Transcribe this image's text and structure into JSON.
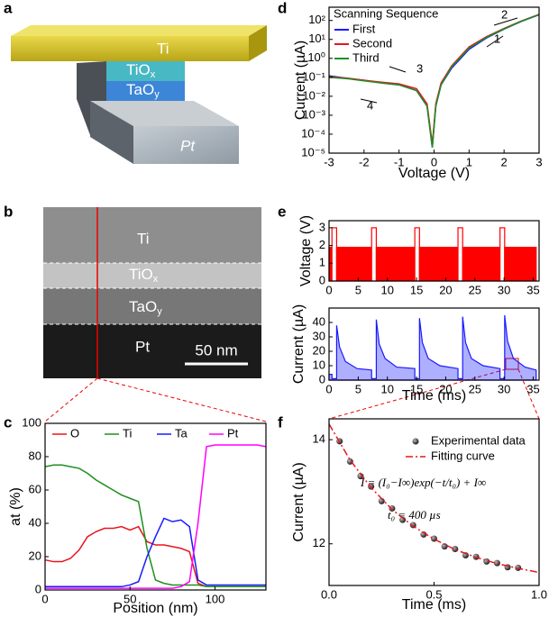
{
  "schematic": {
    "panel_label": "a",
    "layers": [
      {
        "base": "Ti"
      },
      {
        "base": "TiO",
        "sub": "x"
      },
      {
        "base": "TaO",
        "sub": "y"
      },
      {
        "base": "Pt"
      }
    ]
  },
  "micrograph": {
    "panel_label": "b",
    "layers": [
      {
        "base": "Ti"
      },
      {
        "base": "TiO",
        "sub": "x"
      },
      {
        "base": "TaO",
        "sub": "y"
      },
      {
        "base": "Pt"
      }
    ],
    "scale_bar": "50 nm"
  },
  "chart_data": [
    {
      "type": "line",
      "panel_label": "c",
      "xlabel": "Position (nm)",
      "ylabel": "at (%)",
      "legend": "upper center",
      "xlim": [
        0,
        130
      ],
      "xticks": [
        0,
        50,
        100
      ],
      "ylim": [
        0,
        100
      ],
      "yticks": [
        0,
        20,
        40,
        60,
        80,
        100
      ],
      "x": [
        0,
        5,
        10,
        15,
        20,
        25,
        30,
        35,
        40,
        45,
        50,
        55,
        60,
        65,
        70,
        75,
        80,
        85,
        90,
        95,
        100,
        105,
        110,
        115,
        120,
        125,
        130
      ],
      "series": [
        {
          "name": "O",
          "color": "#e8141c",
          "values": [
            18,
            17,
            17,
            19,
            24,
            32,
            35,
            37,
            37,
            38,
            36,
            38,
            29,
            27,
            27,
            26,
            25,
            23,
            4,
            2,
            2,
            2,
            2,
            2,
            2,
            2,
            2
          ]
        },
        {
          "name": "Ti",
          "color": "#1f8f1f",
          "values": [
            74,
            75,
            75,
            74,
            73,
            70,
            66,
            63,
            60,
            57,
            55,
            53,
            25,
            6,
            4,
            3,
            3,
            3,
            3,
            2,
            2,
            2,
            2,
            2,
            2,
            2,
            2
          ]
        },
        {
          "name": "Ta",
          "color": "#1a1aff",
          "values": [
            2,
            2,
            2,
            2,
            2,
            2,
            2,
            2,
            2,
            2,
            3,
            5,
            20,
            32,
            43,
            41,
            42,
            38,
            6,
            3,
            3,
            3,
            3,
            3,
            3,
            3,
            3
          ]
        },
        {
          "name": "Pt",
          "color": "#ff00ff",
          "values": [
            1,
            1,
            1,
            1,
            1,
            1,
            1,
            1,
            1,
            1,
            1,
            1,
            1,
            1,
            1,
            1,
            2,
            5,
            40,
            86,
            87,
            87,
            87,
            87,
            87,
            87,
            86
          ]
        }
      ]
    },
    {
      "type": "line",
      "panel_label": "d",
      "xlabel": "Voltage (V)",
      "ylabel": "Current (µA)",
      "log_y": true,
      "legend": "upper left",
      "legend_title": "Scanning Sequence",
      "annotations": [
        "1",
        "2",
        "3",
        "4"
      ],
      "xlim": [
        -3,
        3
      ],
      "xticks": [
        -3,
        -2,
        -1,
        0,
        1,
        2,
        3
      ],
      "ylim": [
        1e-05,
        500
      ],
      "yticks": [
        {
          "value": 1e-05,
          "label": "10⁻⁵"
        },
        {
          "value": 0.0001,
          "label": "10⁻⁴"
        },
        {
          "value": 0.001,
          "label": "10⁻³"
        },
        {
          "value": 0.01,
          "label": "10⁻²"
        },
        {
          "value": 0.1,
          "label": "10⁻¹"
        },
        {
          "value": 1,
          "label": "10⁰"
        },
        {
          "value": 10,
          "label": "10¹"
        },
        {
          "value": 100,
          "label": "10²"
        }
      ],
      "x": [
        -3,
        -2.5,
        -2,
        -1.5,
        -1,
        -0.5,
        -0.2,
        -0.05,
        0.05,
        0.2,
        0.5,
        1,
        1.5,
        2,
        2.5,
        3
      ],
      "series": [
        {
          "name": "First",
          "color": "#1a1aff",
          "values": [
            0.12,
            0.09,
            0.07,
            0.05,
            0.04,
            0.02,
            0.003,
            2e-05,
            0.003,
            0.04,
            0.3,
            3,
            12,
            35,
            90,
            200
          ]
        },
        {
          "name": "Second",
          "color": "#e8141c",
          "values": [
            0.11,
            0.09,
            0.07,
            0.055,
            0.045,
            0.025,
            0.004,
            3e-05,
            0.004,
            0.05,
            0.4,
            4,
            14,
            38,
            95,
            210
          ]
        },
        {
          "name": "Third",
          "color": "#1f8f1f",
          "values": [
            0.1,
            0.085,
            0.065,
            0.05,
            0.04,
            0.02,
            0.003,
            2e-05,
            0.003,
            0.04,
            0.35,
            3.5,
            13,
            36,
            92,
            205
          ]
        }
      ]
    },
    {
      "type": "histogram",
      "panel_label": "e",
      "ylabel": "Voltage (V)",
      "color": "#ff0000",
      "xlim": [
        0,
        36
      ],
      "xticks": [
        0,
        5,
        10,
        15,
        20,
        25,
        30,
        35
      ],
      "ylim": [
        0,
        3.4
      ],
      "yticks": [
        0,
        1,
        2,
        3
      ],
      "bins": [
        0,
        0.5,
        1.3,
        7.3,
        8.1,
        14.7,
        15.5,
        22.1,
        22.9,
        29.3,
        30.1,
        35.5
      ],
      "values": [
        1.9,
        3,
        1.9,
        3,
        1.9,
        3,
        1.9,
        3,
        1.9,
        3,
        1.9
      ]
    },
    {
      "type": "area",
      "xlabel": "Time (ms)",
      "ylabel": "Current (µA)",
      "xlim": [
        0,
        36
      ],
      "xticks": [
        0,
        5,
        10,
        15,
        20,
        25,
        30,
        35
      ],
      "ylim": [
        0,
        50
      ],
      "yticks": [
        0,
        10,
        20,
        30,
        40
      ],
      "x": [
        0,
        0.5,
        0.5,
        1.3,
        1.3,
        1.8,
        2.8,
        4.8,
        7.3,
        7.3,
        8.1,
        8.1,
        8.6,
        9.6,
        11.6,
        14.7,
        14.7,
        15.5,
        15.5,
        16,
        17,
        19,
        22.1,
        22.1,
        22.9,
        22.9,
        23.4,
        24.4,
        26.4,
        29.3,
        29.3,
        30.1,
        30.1,
        30.6,
        31.6,
        33.6,
        35.5
      ],
      "series": [
        {
          "color": "#1a1aff",
          "values": [
            4,
            4,
            1,
            1,
            38,
            23,
            13,
            8,
            7,
            1,
            1,
            42,
            25,
            15,
            9,
            8,
            1,
            1,
            43,
            26,
            15,
            10,
            8,
            1,
            1,
            44,
            26,
            15,
            10,
            8,
            1,
            1,
            45,
            27,
            15,
            9,
            7
          ]
        }
      ]
    },
    {
      "type": "scatter",
      "panel_label": "f",
      "xlabel": "Time (ms)",
      "ylabel": "Current (µA)",
      "legend": "upper right",
      "annotations": [
        "I = (I₀−I∞)exp(−t/t₀) + I∞",
        "t₀ = 400 µs"
      ],
      "xlim": [
        0,
        1
      ],
      "xticks": [
        {
          "value": 0,
          "label": "0.0"
        },
        0.5,
        {
          "value": 1,
          "label": "1.0"
        }
      ],
      "ylim": [
        11.2,
        14.4
      ],
      "yticks": [
        12,
        14
      ],
      "series": [
        {
          "name": "Experimental data",
          "type": "scatter",
          "color": "#222222",
          "x": [
            0.05,
            0.1,
            0.15,
            0.2,
            0.25,
            0.3,
            0.35,
            0.4,
            0.45,
            0.5,
            0.55,
            0.6,
            0.65,
            0.7,
            0.75,
            0.8,
            0.85,
            0.9
          ],
          "values": [
            13.97,
            13.58,
            13.3,
            13.1,
            12.82,
            12.68,
            12.46,
            12.36,
            12.18,
            12.1,
            11.95,
            11.9,
            11.78,
            11.75,
            11.66,
            11.63,
            11.55,
            11.54
          ]
        },
        {
          "name": "Fitting curve",
          "type": "line",
          "color": "#e8141c",
          "x": [
            0,
            0.1,
            0.2,
            0.3,
            0.4,
            0.5,
            0.6,
            0.7,
            0.8,
            0.9,
            1
          ],
          "values": [
            14.3,
            13.61,
            13.08,
            12.66,
            12.34,
            12.09,
            11.89,
            11.74,
            11.62,
            11.53,
            11.45
          ]
        }
      ]
    }
  ]
}
